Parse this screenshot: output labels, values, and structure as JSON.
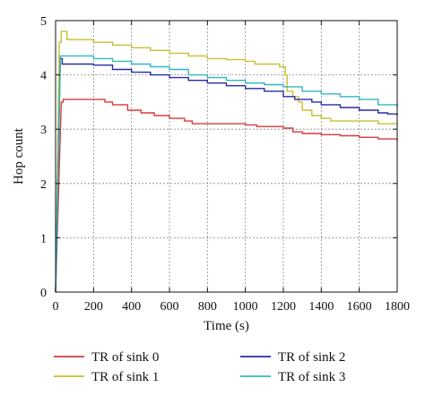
{
  "chart_data": {
    "type": "line",
    "xlabel": "Time (s)",
    "ylabel": "Hop count",
    "xlim": [
      0,
      1800
    ],
    "ylim": [
      0,
      5
    ],
    "xticks": [
      0,
      200,
      400,
      600,
      800,
      1000,
      1200,
      1400,
      1600,
      1800
    ],
    "yticks": [
      0,
      1,
      2,
      3,
      4,
      5
    ],
    "grid": true,
    "legend_position": "bottom",
    "series": [
      {
        "name": "TR of sink 0",
        "color": "#d93a3a",
        "x": [
          0,
          30,
          40,
          220,
          260,
          300,
          380,
          450,
          520,
          600,
          680,
          720,
          900,
          1000,
          1060,
          1100,
          1200,
          1250,
          1300,
          1400,
          1500,
          1600,
          1700,
          1800
        ],
        "y": [
          0,
          3.5,
          3.55,
          3.55,
          3.5,
          3.45,
          3.35,
          3.3,
          3.25,
          3.2,
          3.15,
          3.1,
          3.1,
          3.08,
          3.05,
          3.05,
          3.02,
          2.95,
          2.92,
          2.9,
          2.88,
          2.85,
          2.82,
          2.78
        ]
      },
      {
        "name": "TR of sink 1",
        "color": "#c8c030",
        "x": [
          0,
          20,
          30,
          60,
          100,
          200,
          300,
          400,
          500,
          600,
          700,
          800,
          900,
          1000,
          1050,
          1100,
          1180,
          1210,
          1220,
          1250,
          1280,
          1300,
          1350,
          1400,
          1450,
          1500,
          1600,
          1700,
          1800
        ],
        "y": [
          0,
          4.6,
          4.8,
          4.65,
          4.65,
          4.6,
          4.55,
          4.5,
          4.45,
          4.4,
          4.35,
          4.3,
          4.28,
          4.25,
          4.2,
          4.2,
          4.15,
          4.0,
          3.7,
          3.6,
          3.5,
          3.35,
          3.25,
          3.2,
          3.15,
          3.15,
          3.15,
          3.1,
          3.1
        ]
      },
      {
        "name": "TR of sink 2",
        "color": "#2a2aa8",
        "x": [
          0,
          25,
          35,
          60,
          120,
          200,
          300,
          400,
          500,
          600,
          700,
          800,
          900,
          1000,
          1100,
          1200,
          1260,
          1300,
          1350,
          1400,
          1450,
          1500,
          1600,
          1700,
          1750,
          1800
        ],
        "y": [
          0,
          4.3,
          4.2,
          4.2,
          4.2,
          4.18,
          4.1,
          4.05,
          4.0,
          3.95,
          3.9,
          3.85,
          3.8,
          3.75,
          3.7,
          3.6,
          3.55,
          3.55,
          3.5,
          3.45,
          3.45,
          3.4,
          3.35,
          3.3,
          3.28,
          3.25
        ]
      },
      {
        "name": "TR of sink 3",
        "color": "#30b8c0",
        "x": [
          0,
          25,
          35,
          60,
          200,
          300,
          400,
          500,
          600,
          700,
          800,
          900,
          1000,
          1100,
          1200,
          1300,
          1400,
          1500,
          1600,
          1700,
          1800
        ],
        "y": [
          0,
          4.35,
          4.35,
          4.35,
          4.3,
          4.25,
          4.2,
          4.15,
          4.1,
          4.0,
          3.95,
          3.9,
          3.85,
          3.82,
          3.78,
          3.7,
          3.65,
          3.6,
          3.55,
          3.45,
          3.4
        ]
      }
    ]
  }
}
